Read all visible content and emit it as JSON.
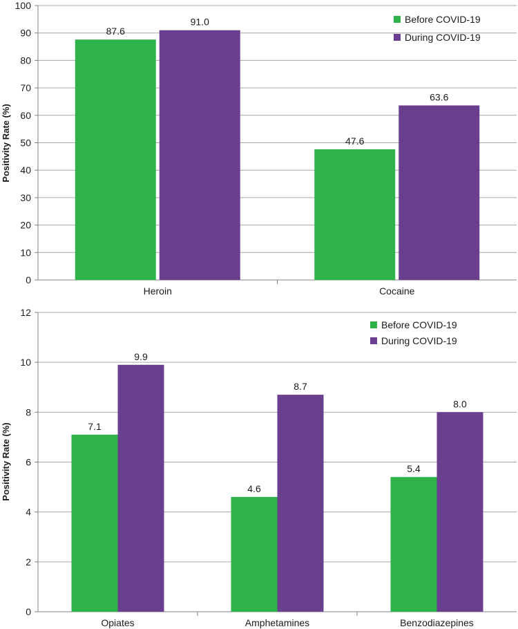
{
  "chart_data": [
    {
      "type": "bar",
      "categories": [
        "Heroin",
        "Cocaine"
      ],
      "series": [
        {
          "name": "Before COVID-19",
          "values": [
            87.6,
            47.6
          ]
        },
        {
          "name": "During COVID-19",
          "values": [
            91.0,
            63.6
          ]
        }
      ],
      "data_labels": [
        [
          "87.6",
          "47.6"
        ],
        [
          "91.0",
          "63.6"
        ]
      ],
      "ylabel": "Positivity Rate (%)",
      "ylim": [
        0,
        100
      ],
      "yticks": [
        0,
        10,
        20,
        30,
        40,
        50,
        60,
        70,
        80,
        90,
        100
      ],
      "grid": true,
      "legend": "top-right"
    },
    {
      "type": "bar",
      "categories": [
        "Opiates",
        "Amphetamines",
        "Benzodiazepines"
      ],
      "series": [
        {
          "name": "Before COVID-19",
          "values": [
            7.1,
            4.6,
            5.4
          ]
        },
        {
          "name": "During COVID-19",
          "values": [
            9.9,
            8.7,
            8.0
          ]
        }
      ],
      "data_labels": [
        [
          "7.1",
          "4.6",
          "5.4"
        ],
        [
          "9.9",
          "8.7",
          "8.0"
        ]
      ],
      "ylabel": "Positivity Rate (%)",
      "ylim": [
        0,
        12
      ],
      "yticks": [
        0,
        2,
        4,
        6,
        8,
        10,
        12
      ],
      "grid": true,
      "legend": "top-right"
    }
  ],
  "colors": {
    "before": "#2db34a",
    "during": "#6b3f8f",
    "grid": "#a6a6a6",
    "axis": "#808080"
  }
}
